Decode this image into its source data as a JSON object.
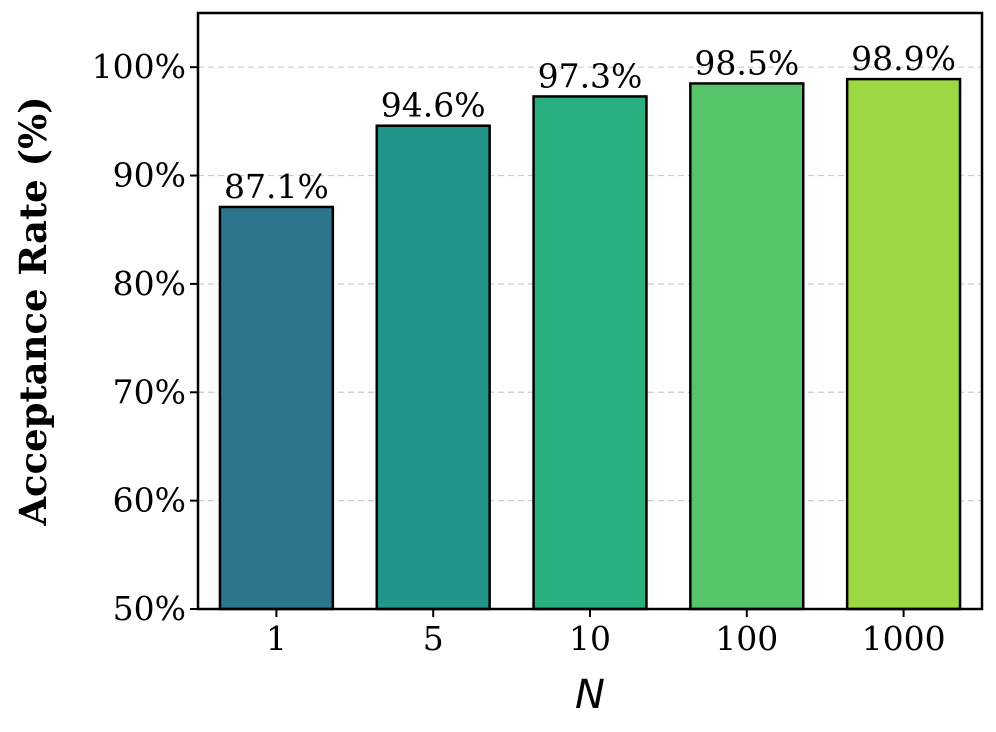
{
  "chart_data": {
    "type": "bar",
    "categories": [
      "1",
      "5",
      "10",
      "100",
      "1000"
    ],
    "values": [
      87.1,
      94.6,
      97.3,
      98.5,
      98.9
    ],
    "value_labels": [
      "87.1%",
      "94.6%",
      "97.3%",
      "98.5%",
      "98.9%"
    ],
    "bar_colors": [
      "#2c768d",
      "#22958b",
      "#2ab07f",
      "#56c56a",
      "#9cd843"
    ],
    "title": "",
    "xlabel": "N",
    "ylabel": "Acceptance Rate (%)",
    "ylim": [
      50,
      105
    ],
    "yticks": [
      50,
      60,
      70,
      80,
      90,
      100
    ],
    "ytick_labels": [
      "50%",
      "60%",
      "70%",
      "80%",
      "90%",
      "100%"
    ],
    "grid": "y-dashed",
    "legend": "none"
  }
}
